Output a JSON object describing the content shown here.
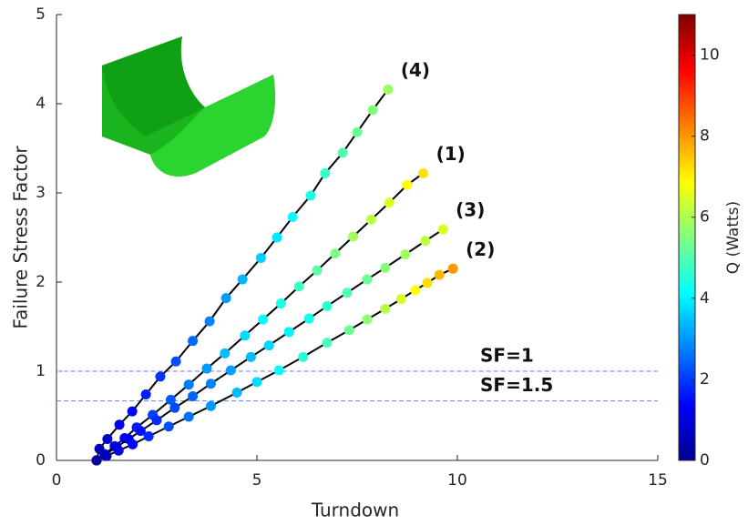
{
  "chart_data": {
    "type": "line",
    "xlabel": "Turndown",
    "ylabel": "Failure Stress Factor",
    "xlim": [
      0,
      15
    ],
    "ylim": [
      0,
      5
    ],
    "xticks": [
      0,
      5,
      10,
      15
    ],
    "yticks": [
      0,
      1,
      2,
      3,
      4,
      5
    ],
    "line_color": "#000000",
    "colorbar": {
      "label": "Q (Watts)",
      "lim": [
        0,
        11
      ],
      "ticks": [
        0,
        2,
        4,
        6,
        8,
        10
      ],
      "colormap": "jet"
    },
    "reference_lines": [
      {
        "value": 1,
        "label": "SF=1"
      },
      {
        "value": 0.667,
        "label": "SF=1.5"
      }
    ],
    "reference_color": "#6f82f0",
    "series": [
      {
        "name": "(4)",
        "x": [
          1.0,
          1.07,
          1.27,
          1.57,
          1.89,
          2.23,
          2.59,
          2.98,
          3.4,
          3.82,
          4.23,
          4.64,
          5.1,
          5.5,
          5.89,
          6.34,
          6.7,
          7.14,
          7.5,
          7.89,
          8.27
        ],
        "values": [
          0,
          0.13,
          0.24,
          0.4,
          0.55,
          0.74,
          0.94,
          1.11,
          1.34,
          1.56,
          1.82,
          2.03,
          2.27,
          2.5,
          2.73,
          2.97,
          3.22,
          3.45,
          3.68,
          3.93,
          4.16
        ],
        "q": [
          0.3,
          0.58,
          0.85,
          1.13,
          1.4,
          1.68,
          1.95,
          2.23,
          2.5,
          2.78,
          3.05,
          3.33,
          3.6,
          3.88,
          4.15,
          4.43,
          4.7,
          4.98,
          5.25,
          5.53,
          5.8
        ]
      },
      {
        "name": "(1)",
        "x": [
          1.0,
          1.2,
          1.45,
          1.7,
          2.0,
          2.4,
          2.85,
          3.3,
          3.75,
          4.2,
          4.7,
          5.15,
          5.6,
          6.05,
          6.5,
          6.95,
          7.4,
          7.85,
          8.3,
          8.75,
          9.15
        ],
        "values": [
          0,
          0.07,
          0.16,
          0.25,
          0.37,
          0.51,
          0.68,
          0.85,
          1.03,
          1.2,
          1.4,
          1.58,
          1.76,
          1.95,
          2.13,
          2.32,
          2.51,
          2.7,
          2.89,
          3.09,
          3.22
        ],
        "q": [
          0.3,
          0.65,
          0.99,
          1.34,
          1.68,
          2.03,
          2.37,
          2.72,
          3.06,
          3.41,
          3.75,
          4.1,
          4.44,
          4.79,
          5.13,
          5.48,
          5.82,
          6.17,
          6.51,
          6.86,
          7.2
        ]
      },
      {
        "name": "(3)",
        "x": [
          1.0,
          1.2,
          1.5,
          1.8,
          2.1,
          2.5,
          2.95,
          3.4,
          3.85,
          4.35,
          4.85,
          5.3,
          5.8,
          6.3,
          6.75,
          7.25,
          7.75,
          8.2,
          8.7,
          9.2,
          9.64
        ],
        "values": [
          0,
          0.06,
          0.15,
          0.24,
          0.33,
          0.45,
          0.59,
          0.72,
          0.86,
          1.01,
          1.16,
          1.29,
          1.44,
          1.59,
          1.73,
          1.88,
          2.03,
          2.16,
          2.31,
          2.46,
          2.59
        ],
        "q": [
          0.3,
          0.61,
          0.92,
          1.23,
          1.54,
          1.85,
          2.16,
          2.47,
          2.78,
          3.09,
          3.4,
          3.71,
          4.02,
          4.33,
          4.64,
          4.95,
          5.26,
          5.57,
          5.88,
          6.19,
          6.5
        ]
      },
      {
        "name": "(2)",
        "x": [
          1.0,
          1.25,
          1.55,
          1.9,
          2.3,
          2.8,
          3.3,
          3.85,
          4.5,
          5.0,
          5.55,
          6.15,
          6.75,
          7.3,
          7.75,
          8.2,
          8.6,
          8.95,
          9.25,
          9.55,
          9.89
        ],
        "values": [
          0,
          0.05,
          0.11,
          0.18,
          0.27,
          0.38,
          0.49,
          0.61,
          0.76,
          0.88,
          1.01,
          1.16,
          1.32,
          1.46,
          1.58,
          1.7,
          1.81,
          1.91,
          1.99,
          2.08,
          2.15
        ],
        "q": [
          0.3,
          0.69,
          1.07,
          1.46,
          1.84,
          2.23,
          2.61,
          3.0,
          3.38,
          3.77,
          4.15,
          4.54,
          4.92,
          5.31,
          5.69,
          6.08,
          6.46,
          6.85,
          7.23,
          7.62,
          8.0
        ]
      }
    ]
  }
}
